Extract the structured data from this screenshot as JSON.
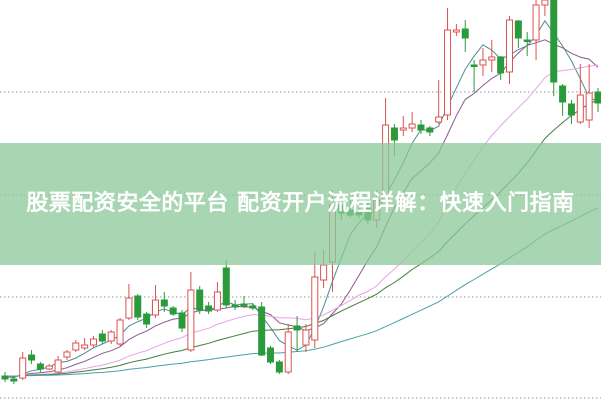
{
  "title": "股票配资安全的平台 配资开户流程详解：快速入门指南",
  "colors": {
    "up": "#d9534f",
    "down": "#2a9a3a",
    "grid": "#999999",
    "banner": "#8cc898",
    "ma": [
      "#4f8b96",
      "#8a5a8f",
      "#e9a2e9",
      "#3f7f3f",
      "#4aa0a6"
    ]
  },
  "chart_data": {
    "type": "candlestick",
    "grid": "horizontal-dotted",
    "ylim": [
      0,
      100
    ],
    "moving_averages": [
      5,
      10,
      20,
      30,
      60
    ],
    "candles": [
      [
        6.0,
        5.25,
        7,
        4.5
      ],
      [
        5.25,
        4.75,
        6,
        4
      ],
      [
        5.5,
        10.5,
        12,
        5
      ],
      [
        11.25,
        10,
        12.5,
        9
      ],
      [
        9,
        7.75,
        9.5,
        7
      ],
      [
        7.75,
        8.5,
        9,
        7.5
      ],
      [
        7,
        10,
        11,
        6.5
      ],
      [
        10.75,
        12,
        12.5,
        10
      ],
      [
        12.5,
        14.25,
        15,
        12
      ],
      [
        13,
        13.75,
        15.5,
        12.5
      ],
      [
        13.75,
        15.25,
        16,
        13
      ],
      [
        16.5,
        14.75,
        17.5,
        14
      ],
      [
        14.75,
        17,
        17.5,
        14
      ],
      [
        14,
        20,
        20.5,
        13.5
      ],
      [
        20.5,
        25.5,
        29,
        20
      ],
      [
        26,
        20.75,
        26.5,
        20
      ],
      [
        21.5,
        19,
        22,
        18
      ],
      [
        21.25,
        25,
        28.75,
        20.5
      ],
      [
        25,
        23.5,
        27,
        22
      ],
      [
        23,
        21.5,
        23.5,
        21
      ],
      [
        21.75,
        18,
        22.5,
        17
      ],
      [
        12.5,
        27.5,
        32,
        12
      ],
      [
        27.5,
        22.5,
        28.5,
        21.5
      ],
      [
        23.5,
        22.25,
        24.5,
        21.5
      ],
      [
        22.5,
        27,
        29.5,
        22
      ],
      [
        33,
        23.75,
        35,
        23
      ],
      [
        23.75,
        23.25,
        25,
        22.5
      ],
      [
        24,
        23.5,
        26,
        23
      ],
      [
        23.5,
        23,
        24,
        22.5
      ],
      [
        23.25,
        11.25,
        24.5,
        11
      ],
      [
        13,
        9.5,
        13.5,
        9
      ],
      [
        9.5,
        7,
        10,
        6.5
      ],
      [
        7,
        17,
        19,
        6.5
      ],
      [
        18.5,
        17.5,
        21,
        12
      ],
      [
        13.75,
        17.5,
        19,
        12
      ],
      [
        15,
        30.75,
        37,
        13
      ],
      [
        30,
        33.75,
        37.5,
        28
      ],
      [
        34.5,
        48.75,
        52.5,
        27
      ],
      [
        48.75,
        46.75,
        50,
        45
      ],
      [
        47.5,
        46.25,
        50,
        45.5
      ],
      [
        47,
        46.25,
        48,
        45.5
      ],
      [
        48,
        45,
        50,
        44
      ],
      [
        45,
        50,
        52.5,
        43
      ],
      [
        50,
        68.75,
        75.5,
        48
      ],
      [
        68,
        65,
        69,
        61
      ],
      [
        67.5,
        68,
        71,
        66
      ],
      [
        68,
        69,
        72,
        67
      ],
      [
        68.75,
        67.5,
        70,
        66.5
      ],
      [
        68,
        67,
        68.5,
        66
      ],
      [
        69.5,
        70.75,
        80,
        69
      ],
      [
        71.25,
        92.5,
        98,
        70
      ],
      [
        92,
        92.5,
        94,
        91
      ],
      [
        92.75,
        90.5,
        95,
        87
      ],
      [
        83.75,
        83.5,
        85,
        77
      ],
      [
        83.75,
        85,
        88,
        81
      ],
      [
        85,
        85.75,
        90,
        82
      ],
      [
        85.75,
        81.75,
        86,
        80
      ],
      [
        82,
        95,
        96,
        79
      ],
      [
        94.75,
        90.5,
        95,
        88
      ],
      [
        90,
        89.75,
        92,
        86
      ],
      [
        90,
        98.75,
        100,
        85
      ],
      [
        98.75,
        100,
        100,
        96
      ],
      [
        100,
        79.5,
        100,
        76
      ],
      [
        78.5,
        74.5,
        79,
        71
      ],
      [
        74,
        71.25,
        75,
        69
      ],
      [
        69.5,
        76.25,
        84,
        69
      ],
      [
        70,
        76.75,
        84,
        68
      ],
      [
        77,
        74.25,
        78,
        72
      ]
    ]
  }
}
